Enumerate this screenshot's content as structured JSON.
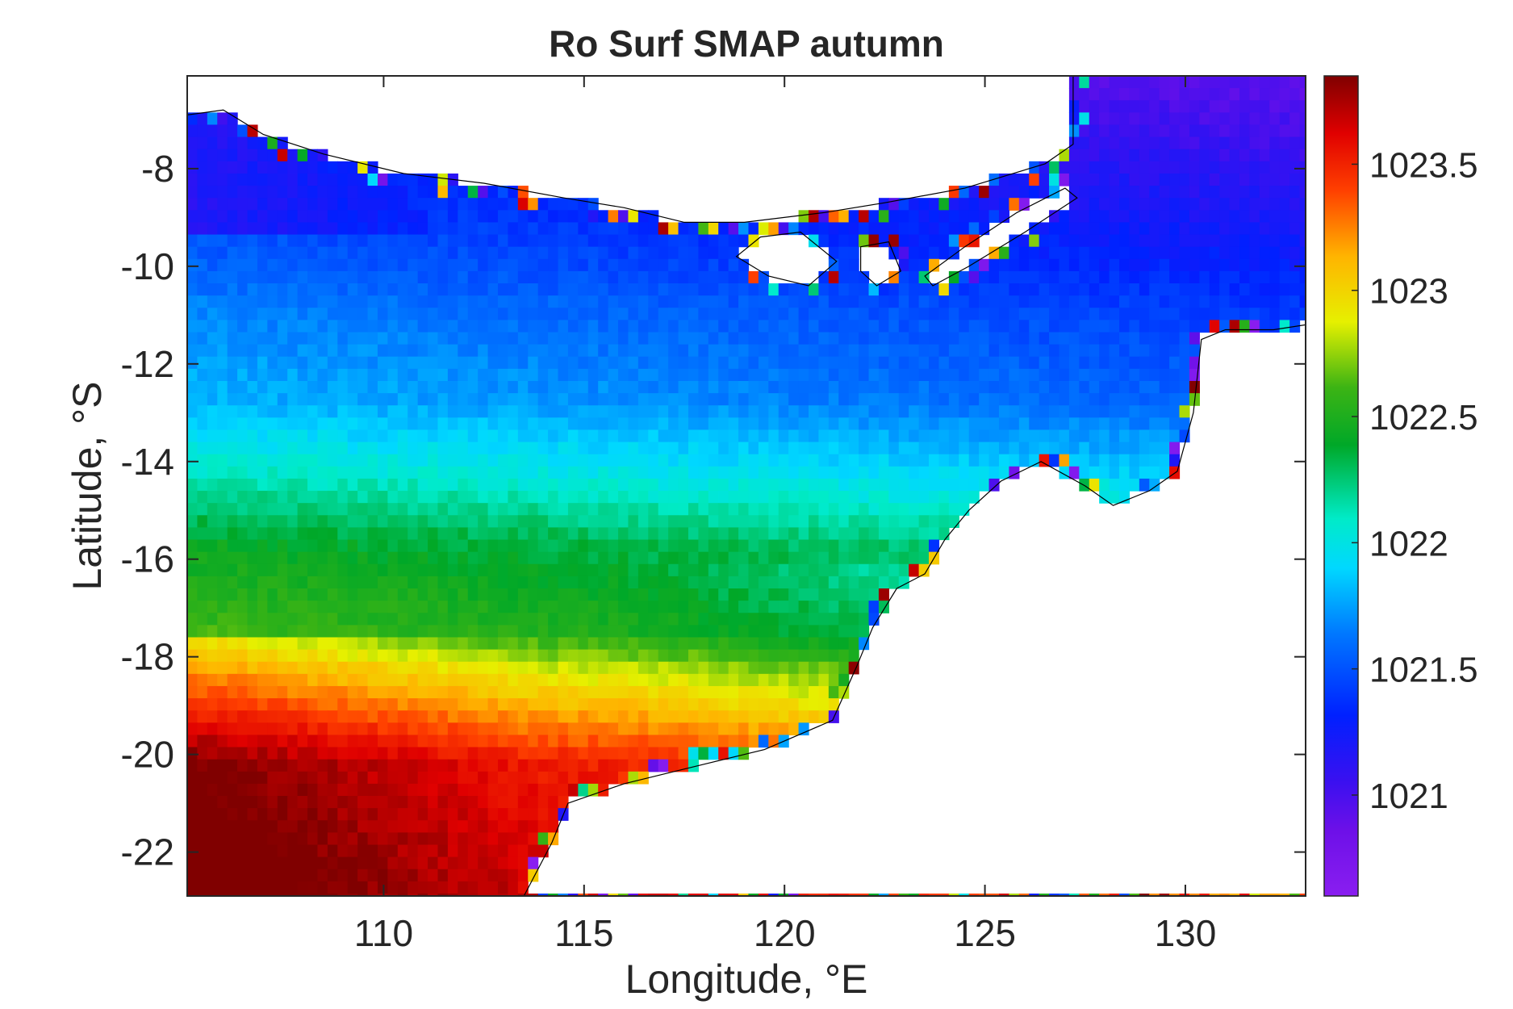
{
  "chart_data": {
    "type": "heatmap",
    "title": "Ro Surf SMAP autumn",
    "xlabel": "Longitude, °E",
    "ylabel": "Latitude, °S",
    "xlim": [
      105.1,
      133
    ],
    "ylim": [
      -22.9,
      -6.1
    ],
    "xticks": [
      110,
      115,
      120,
      125,
      130
    ],
    "yticks": [
      -8,
      -10,
      -12,
      -14,
      -16,
      -18,
      -20,
      -22
    ],
    "xtick_labels": [
      "110",
      "115",
      "120",
      "125",
      "130"
    ],
    "ytick_labels": [
      "-8",
      "-10",
      "-12",
      "-14",
      "-16",
      "-18",
      "-20",
      "-22"
    ],
    "colorbar": {
      "colormap": "jet-like (purple-blue-cyan-green-yellow-red-darkred)",
      "clim": [
        1020.6,
        1023.85
      ],
      "ticks": [
        1021,
        1021.5,
        1022,
        1022.5,
        1023,
        1023.5
      ],
      "tick_labels": [
        "1021",
        "1021.5",
        "1022",
        "1022.5",
        "1023",
        "1023.5"
      ]
    },
    "grid": false,
    "field_description_values": [
      {
        "region": "south-west (105-112E, 20-23S)",
        "value": 1023.7
      },
      {
        "region": "west (105-113E, 18-20S)",
        "value": 1023.1
      },
      {
        "region": "central band (105-120E, 16-18S)",
        "value": 1022.5
      },
      {
        "region": "band (105-120E, 14-16S)",
        "value": 1022.1
      },
      {
        "region": "north-east (118-132E, 10-14S)",
        "value": 1021.6
      },
      {
        "region": "north-west coast (105-110E, 8-9S)",
        "value": 1021.2
      }
    ]
  },
  "colors": {
    "background": "#ffffff",
    "axis": "#262626",
    "land": "#ffffff",
    "coastline": "#000000"
  }
}
